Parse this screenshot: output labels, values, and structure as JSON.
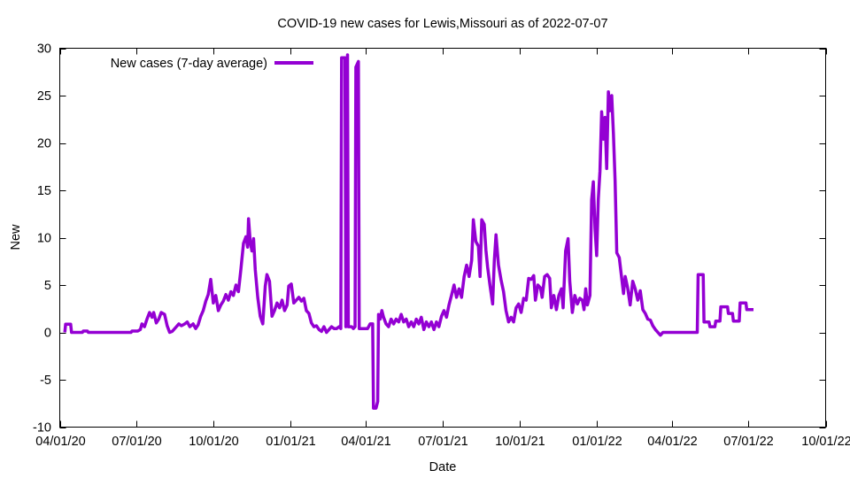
{
  "chart_data": {
    "type": "line",
    "title": "COVID-19 new cases for Lewis,Missouri as of 2022-07-07",
    "xlabel": "Date",
    "ylabel": "New",
    "ylim": [
      -10,
      30
    ],
    "y_ticks": [
      -10,
      -5,
      0,
      5,
      10,
      15,
      20,
      25,
      30
    ],
    "x_ticks": [
      "04/01/20",
      "07/01/20",
      "10/01/20",
      "01/01/21",
      "04/01/21",
      "07/01/21",
      "10/01/21",
      "01/01/22",
      "04/01/22",
      "07/01/22",
      "10/01/22"
    ],
    "xlim": [
      "2020-04-01",
      "2022-10-01"
    ],
    "grid": false,
    "legend_position": "top-left",
    "colors": {
      "series": "#9400d3",
      "axis": "#000000"
    },
    "series": [
      {
        "name": "New cases (7-day average)",
        "points": [
          [
            "2020-04-07",
            0
          ],
          [
            "2020-04-08",
            0.86
          ],
          [
            "2020-04-14",
            0.86
          ],
          [
            "2020-04-15",
            0
          ],
          [
            "2020-04-28",
            0
          ],
          [
            "2020-04-29",
            0.14
          ],
          [
            "2020-05-04",
            0.14
          ],
          [
            "2020-05-05",
            0
          ],
          [
            "2020-06-25",
            0
          ],
          [
            "2020-06-26",
            0.14
          ],
          [
            "2020-07-03",
            0.14
          ],
          [
            "2020-07-06",
            0.3
          ],
          [
            "2020-07-08",
            0.9
          ],
          [
            "2020-07-11",
            0.6
          ],
          [
            "2020-07-14",
            1.4
          ],
          [
            "2020-07-17",
            2.1
          ],
          [
            "2020-07-20",
            1.6
          ],
          [
            "2020-07-22",
            2.1
          ],
          [
            "2020-07-25",
            1.0
          ],
          [
            "2020-07-28",
            1.4
          ],
          [
            "2020-07-31",
            2.1
          ],
          [
            "2020-08-04",
            1.9
          ],
          [
            "2020-08-07",
            0.7
          ],
          [
            "2020-08-10",
            0
          ],
          [
            "2020-08-13",
            0.1
          ],
          [
            "2020-08-18",
            0.6
          ],
          [
            "2020-08-21",
            0.9
          ],
          [
            "2020-08-24",
            0.7
          ],
          [
            "2020-08-28",
            0.9
          ],
          [
            "2020-08-31",
            1.1
          ],
          [
            "2020-09-03",
            0.6
          ],
          [
            "2020-09-07",
            0.9
          ],
          [
            "2020-09-10",
            0.4
          ],
          [
            "2020-09-13",
            0.8
          ],
          [
            "2020-09-16",
            1.7
          ],
          [
            "2020-09-19",
            2.3
          ],
          [
            "2020-09-22",
            3.3
          ],
          [
            "2020-09-25",
            4.0
          ],
          [
            "2020-09-28",
            5.6
          ],
          [
            "2020-10-01",
            3.1
          ],
          [
            "2020-10-04",
            3.9
          ],
          [
            "2020-10-07",
            2.3
          ],
          [
            "2020-10-10",
            2.9
          ],
          [
            "2020-10-13",
            3.3
          ],
          [
            "2020-10-16",
            4.0
          ],
          [
            "2020-10-19",
            3.4
          ],
          [
            "2020-10-22",
            4.3
          ],
          [
            "2020-10-25",
            3.9
          ],
          [
            "2020-10-28",
            5.0
          ],
          [
            "2020-10-31",
            4.3
          ],
          [
            "2020-11-03",
            6.7
          ],
          [
            "2020-11-06",
            9.4
          ],
          [
            "2020-11-09",
            10.1
          ],
          [
            "2020-11-11",
            9.0
          ],
          [
            "2020-11-12",
            12.0
          ],
          [
            "2020-11-14",
            9.6
          ],
          [
            "2020-11-16",
            8.6
          ],
          [
            "2020-11-18",
            9.9
          ],
          [
            "2020-11-20",
            6.6
          ],
          [
            "2020-11-23",
            3.7
          ],
          [
            "2020-11-26",
            1.7
          ],
          [
            "2020-11-29",
            0.9
          ],
          [
            "2020-12-02",
            4.9
          ],
          [
            "2020-12-04",
            6.1
          ],
          [
            "2020-12-07",
            5.4
          ],
          [
            "2020-12-10",
            1.7
          ],
          [
            "2020-12-13",
            2.3
          ],
          [
            "2020-12-16",
            3.1
          ],
          [
            "2020-12-19",
            2.6
          ],
          [
            "2020-12-22",
            3.4
          ],
          [
            "2020-12-25",
            2.3
          ],
          [
            "2020-12-28",
            2.9
          ],
          [
            "2020-12-30",
            4.9
          ],
          [
            "2021-01-02",
            5.1
          ],
          [
            "2021-01-05",
            3.1
          ],
          [
            "2021-01-08",
            3.4
          ],
          [
            "2021-01-11",
            3.7
          ],
          [
            "2021-01-14",
            3.3
          ],
          [
            "2021-01-17",
            3.6
          ],
          [
            "2021-01-20",
            2.3
          ],
          [
            "2021-01-23",
            2.0
          ],
          [
            "2021-01-26",
            1.0
          ],
          [
            "2021-01-29",
            0.6
          ],
          [
            "2021-02-01",
            0.7
          ],
          [
            "2021-02-04",
            0.3
          ],
          [
            "2021-02-07",
            0.1
          ],
          [
            "2021-02-10",
            0.6
          ],
          [
            "2021-02-13",
            0
          ],
          [
            "2021-02-16",
            0.3
          ],
          [
            "2021-02-19",
            0.6
          ],
          [
            "2021-02-22",
            0.4
          ],
          [
            "2021-02-25",
            0.4
          ],
          [
            "2021-02-28",
            0.6
          ],
          [
            "2021-03-02",
            0.4
          ],
          [
            "2021-03-03",
            29.0
          ],
          [
            "2021-03-07",
            29.0
          ],
          [
            "2021-03-08",
            0.6
          ],
          [
            "2021-03-10",
            29.3
          ],
          [
            "2021-03-11",
            0.6
          ],
          [
            "2021-03-15",
            0.6
          ],
          [
            "2021-03-17",
            0.4
          ],
          [
            "2021-03-19",
            0.6
          ],
          [
            "2021-03-20",
            28.0
          ],
          [
            "2021-03-23",
            28.6
          ],
          [
            "2021-03-24",
            0.4
          ],
          [
            "2021-04-03",
            0.4
          ],
          [
            "2021-04-06",
            0.9
          ],
          [
            "2021-04-09",
            0.9
          ],
          [
            "2021-04-10",
            -8.0
          ],
          [
            "2021-04-13",
            -8.0
          ],
          [
            "2021-04-15",
            -7.3
          ],
          [
            "2021-04-16",
            1.9
          ],
          [
            "2021-04-18",
            1.4
          ],
          [
            "2021-04-20",
            2.3
          ],
          [
            "2021-04-22",
            1.6
          ],
          [
            "2021-04-25",
            0.9
          ],
          [
            "2021-04-28",
            0.6
          ],
          [
            "2021-05-01",
            1.4
          ],
          [
            "2021-05-04",
            0.9
          ],
          [
            "2021-05-07",
            1.4
          ],
          [
            "2021-05-10",
            1.1
          ],
          [
            "2021-05-13",
            1.9
          ],
          [
            "2021-05-16",
            1.1
          ],
          [
            "2021-05-19",
            1.4
          ],
          [
            "2021-05-22",
            0.6
          ],
          [
            "2021-05-25",
            1.1
          ],
          [
            "2021-05-28",
            0.6
          ],
          [
            "2021-05-31",
            1.4
          ],
          [
            "2021-06-03",
            0.9
          ],
          [
            "2021-06-06",
            1.6
          ],
          [
            "2021-06-09",
            0.3
          ],
          [
            "2021-06-12",
            1.1
          ],
          [
            "2021-06-15",
            0.6
          ],
          [
            "2021-06-18",
            1.1
          ],
          [
            "2021-06-21",
            0.3
          ],
          [
            "2021-06-24",
            1.1
          ],
          [
            "2021-06-27",
            0.6
          ],
          [
            "2021-06-30",
            1.7
          ],
          [
            "2021-07-03",
            2.3
          ],
          [
            "2021-07-06",
            1.6
          ],
          [
            "2021-07-09",
            2.9
          ],
          [
            "2021-07-12",
            3.9
          ],
          [
            "2021-07-15",
            5.0
          ],
          [
            "2021-07-18",
            3.7
          ],
          [
            "2021-07-21",
            4.6
          ],
          [
            "2021-07-24",
            3.7
          ],
          [
            "2021-07-27",
            5.9
          ],
          [
            "2021-07-30",
            7.1
          ],
          [
            "2021-08-02",
            5.9
          ],
          [
            "2021-08-05",
            7.6
          ],
          [
            "2021-08-07",
            11.9
          ],
          [
            "2021-08-10",
            9.6
          ],
          [
            "2021-08-13",
            9.1
          ],
          [
            "2021-08-15",
            5.9
          ],
          [
            "2021-08-17",
            11.9
          ],
          [
            "2021-08-20",
            11.4
          ],
          [
            "2021-08-22",
            8.7
          ],
          [
            "2021-08-24",
            6.9
          ],
          [
            "2021-08-27",
            4.9
          ],
          [
            "2021-08-30",
            3.0
          ],
          [
            "2021-09-01",
            7.6
          ],
          [
            "2021-09-03",
            10.3
          ],
          [
            "2021-09-06",
            7.1
          ],
          [
            "2021-09-09",
            5.6
          ],
          [
            "2021-09-12",
            4.3
          ],
          [
            "2021-09-15",
            2.3
          ],
          [
            "2021-09-18",
            1.1
          ],
          [
            "2021-09-21",
            1.6
          ],
          [
            "2021-09-24",
            1.1
          ],
          [
            "2021-09-27",
            2.6
          ],
          [
            "2021-09-30",
            3.0
          ],
          [
            "2021-10-03",
            2.1
          ],
          [
            "2021-10-06",
            3.6
          ],
          [
            "2021-10-09",
            3.4
          ],
          [
            "2021-10-12",
            5.7
          ],
          [
            "2021-10-15",
            5.6
          ],
          [
            "2021-10-18",
            6.0
          ],
          [
            "2021-10-20",
            3.4
          ],
          [
            "2021-10-23",
            5.0
          ],
          [
            "2021-10-26",
            4.7
          ],
          [
            "2021-10-28",
            3.7
          ],
          [
            "2021-10-31",
            5.9
          ],
          [
            "2021-11-03",
            6.1
          ],
          [
            "2021-11-06",
            5.7
          ],
          [
            "2021-11-08",
            2.6
          ],
          [
            "2021-11-11",
            3.9
          ],
          [
            "2021-11-14",
            2.4
          ],
          [
            "2021-11-17",
            3.9
          ],
          [
            "2021-11-20",
            4.6
          ],
          [
            "2021-11-22",
            2.6
          ],
          [
            "2021-11-25",
            8.6
          ],
          [
            "2021-11-28",
            9.9
          ],
          [
            "2021-11-30",
            5.4
          ],
          [
            "2021-12-03",
            2.1
          ],
          [
            "2021-12-06",
            3.9
          ],
          [
            "2021-12-09",
            3.0
          ],
          [
            "2021-12-12",
            3.6
          ],
          [
            "2021-12-15",
            3.4
          ],
          [
            "2021-12-17",
            2.4
          ],
          [
            "2021-12-19",
            4.6
          ],
          [
            "2021-12-21",
            2.9
          ],
          [
            "2021-12-24",
            3.9
          ],
          [
            "2021-12-26",
            14.0
          ],
          [
            "2021-12-28",
            15.9
          ],
          [
            "2021-12-30",
            11.0
          ],
          [
            "2022-01-01",
            8.1
          ],
          [
            "2022-01-03",
            14.0
          ],
          [
            "2022-01-05",
            17.0
          ],
          [
            "2022-01-07",
            23.3
          ],
          [
            "2022-01-09",
            20.4
          ],
          [
            "2022-01-11",
            22.7
          ],
          [
            "2022-01-13",
            17.3
          ],
          [
            "2022-01-15",
            25.4
          ],
          [
            "2022-01-17",
            23.4
          ],
          [
            "2022-01-19",
            25.0
          ],
          [
            "2022-01-21",
            21.0
          ],
          [
            "2022-01-23",
            16.0
          ],
          [
            "2022-01-25",
            8.4
          ],
          [
            "2022-01-28",
            7.9
          ],
          [
            "2022-01-31",
            5.6
          ],
          [
            "2022-02-02",
            4.1
          ],
          [
            "2022-02-04",
            5.9
          ],
          [
            "2022-02-07",
            4.7
          ],
          [
            "2022-02-10",
            2.9
          ],
          [
            "2022-02-13",
            5.4
          ],
          [
            "2022-02-16",
            4.6
          ],
          [
            "2022-02-19",
            3.4
          ],
          [
            "2022-02-22",
            4.4
          ],
          [
            "2022-02-25",
            2.4
          ],
          [
            "2022-02-28",
            2.0
          ],
          [
            "2022-03-03",
            1.4
          ],
          [
            "2022-03-06",
            1.3
          ],
          [
            "2022-03-09",
            0.7
          ],
          [
            "2022-03-12",
            0.3
          ],
          [
            "2022-03-15",
            0
          ],
          [
            "2022-03-18",
            -0.3
          ],
          [
            "2022-03-21",
            0
          ],
          [
            "2022-05-01",
            0
          ],
          [
            "2022-05-02",
            6.1
          ],
          [
            "2022-05-08",
            6.1
          ],
          [
            "2022-05-09",
            1.1
          ],
          [
            "2022-05-15",
            1.1
          ],
          [
            "2022-05-16",
            0.6
          ],
          [
            "2022-05-22",
            0.6
          ],
          [
            "2022-05-23",
            1.2
          ],
          [
            "2022-05-28",
            1.2
          ],
          [
            "2022-05-29",
            2.7
          ],
          [
            "2022-06-06",
            2.7
          ],
          [
            "2022-06-07",
            2.0
          ],
          [
            "2022-06-12",
            2.0
          ],
          [
            "2022-06-13",
            1.2
          ],
          [
            "2022-06-20",
            1.2
          ],
          [
            "2022-06-21",
            3.1
          ],
          [
            "2022-06-28",
            3.1
          ],
          [
            "2022-06-29",
            2.4
          ],
          [
            "2022-07-07",
            2.4
          ]
        ]
      }
    ]
  }
}
